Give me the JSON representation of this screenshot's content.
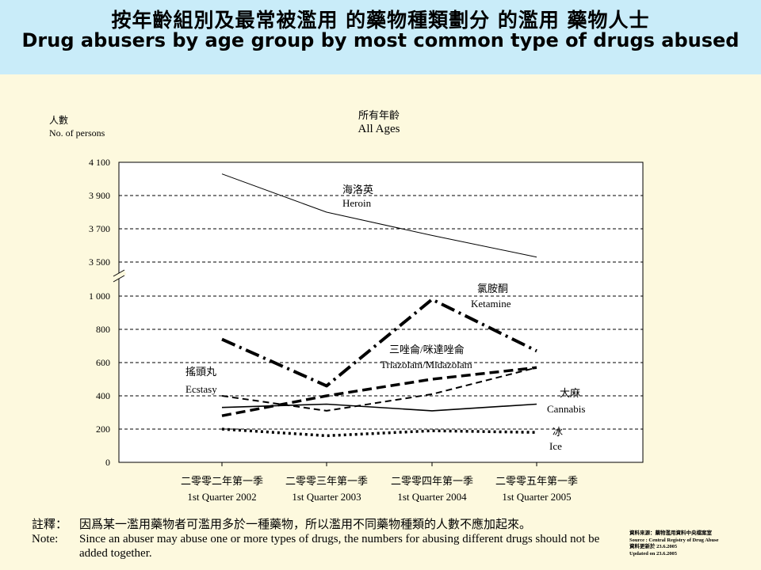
{
  "header": {
    "title_zh": "按年齡組別及最常被濫用 的藥物種類劃分 的濫用 藥物人士",
    "title_en": "Drug abusers by age group by most common type of drugs abused"
  },
  "chart_data": {
    "type": "line",
    "title_zh": "所有年齡",
    "title_en": "All Ages",
    "ylabel_zh": "人數",
    "ylabel_en": "No. of persons",
    "y_axis_break": true,
    "ylim_lower": [
      0,
      1000
    ],
    "ylim_upper": [
      3500,
      4100
    ],
    "yticks_lower": [
      "0",
      "200",
      "400",
      "600",
      "800",
      "1 000"
    ],
    "yticks_upper": [
      "3 500",
      "3 700",
      "3 900",
      "4 100"
    ],
    "categories": [
      {
        "zh": "二零零二年第一季",
        "en": "1st Quarter 2002"
      },
      {
        "zh": "二零零三年第一季",
        "en": "1st Quarter 2003"
      },
      {
        "zh": "二零零四年第一季",
        "en": "1st Quarter 2004"
      },
      {
        "zh": "二零零五年第一季",
        "en": "1st Quarter 2005"
      }
    ],
    "grid": "horizontal dashed",
    "series": [
      {
        "key": "heroin",
        "name_zh": "海洛英",
        "name_en": "Heroin",
        "values": [
          4030,
          3800,
          3660,
          3530
        ],
        "style": "solid-thin"
      },
      {
        "key": "ketamine",
        "name_zh": "氯胺酮",
        "name_en": "Ketamine",
        "values": [
          740,
          460,
          980,
          670
        ],
        "style": "dash-dot-thick"
      },
      {
        "key": "triazolam",
        "name_zh": "三唑侖/咪達唑侖",
        "name_en": "Triazolam/Midazolam",
        "values": [
          280,
          400,
          500,
          570
        ],
        "style": "dash-thick"
      },
      {
        "key": "ecstasy",
        "name_zh": "搖頭丸",
        "name_en": "Ecstasy",
        "values": [
          400,
          310,
          410,
          570
        ],
        "style": "dash-medium"
      },
      {
        "key": "cannabis",
        "name_zh": "大麻",
        "name_en": "Cannabis",
        "values": [
          330,
          350,
          310,
          350
        ],
        "style": "solid-medium"
      },
      {
        "key": "ice",
        "name_zh": "冰",
        "name_en": "Ice",
        "values": [
          200,
          160,
          190,
          180
        ],
        "style": "dotted-thick"
      }
    ]
  },
  "notes": {
    "label_zh": "註釋：",
    "text_zh": "因爲某一濫用藥物者可濫用多於一種藥物，所以濫用不同藥物種類的人數不應加起來。",
    "label_en": "Note:",
    "text_en": "Since an abuser may abuse one or more types of drugs, the numbers for abusing different drugs should not be added together."
  },
  "source": {
    "line1_zh": "資料來源：藥物濫用資料中央檔案室",
    "line1_en": "Source : Central Registry of Drug Abuse",
    "line2_zh": "資料更新於 23.6.2005",
    "line2_en": "Updated on 23.6.2005"
  }
}
